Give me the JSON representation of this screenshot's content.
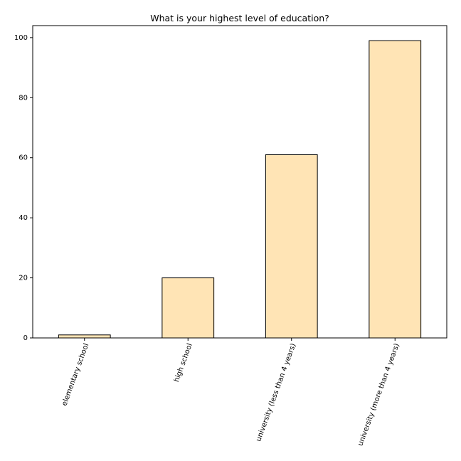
{
  "chart_data": {
    "type": "bar",
    "title": "What is your highest level of education?",
    "xlabel": "",
    "ylabel": "",
    "categories": [
      "elementary school",
      "high school",
      "university (less than 4 years)",
      "university (more than 4 years)"
    ],
    "values": [
      1,
      20,
      61,
      99
    ],
    "ylim": [
      0,
      104
    ],
    "yticks": [
      0,
      20,
      40,
      60,
      80,
      100
    ],
    "bar_color": "#ffe4b5",
    "edge_color": "#000000",
    "grid": false,
    "legend": "none",
    "x_tick_rotation_deg": 70
  }
}
